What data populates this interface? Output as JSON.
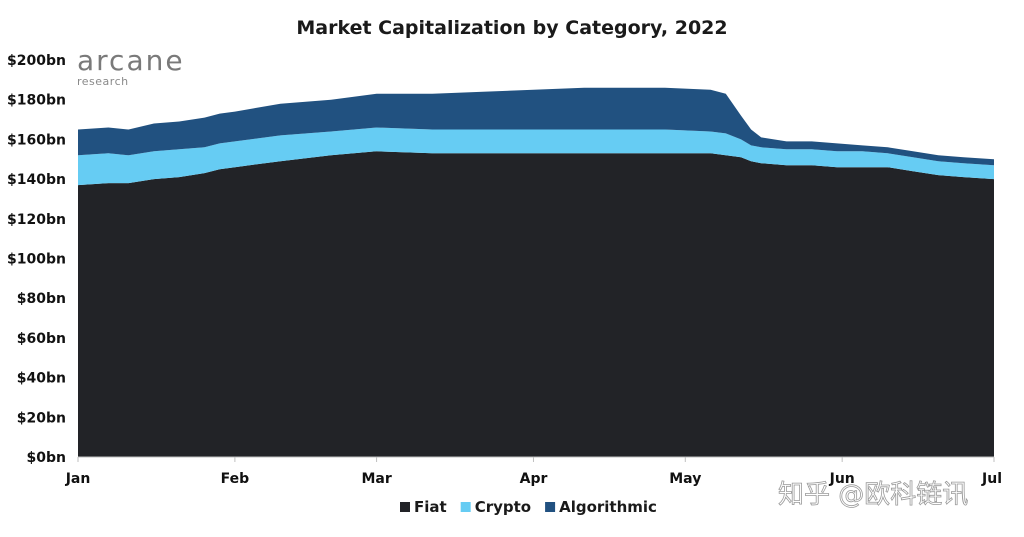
{
  "brand": {
    "name": "arcane",
    "sub": "research"
  },
  "watermark": "知乎 @欧科链讯",
  "colors": {
    "fiat": "#222327",
    "crypto": "#66ccf3",
    "algorithmic": "#215180",
    "axis": "#bfbfbf"
  },
  "chart_data": {
    "type": "area",
    "stacked": true,
    "title": "Market Capitalization  by Category, 2022",
    "ylim": [
      0,
      200
    ],
    "y_ticks": [
      0,
      20,
      40,
      60,
      80,
      100,
      120,
      140,
      160,
      180,
      200
    ],
    "y_tick_labels": [
      "$0bn",
      "$20bn",
      "$40bn",
      "$60bn",
      "$80bn",
      "$100bn",
      "$120bn",
      "$140bn",
      "$160bn",
      "$180bn",
      "$200bn"
    ],
    "x_tick_labels": [
      "Jan",
      "Feb",
      "Mar",
      "Apr",
      "May",
      "Jun",
      "Jul"
    ],
    "x_tick_days": [
      0,
      31,
      59,
      90,
      120,
      151,
      181
    ],
    "x_days": [
      0,
      6,
      10,
      15,
      20,
      25,
      28,
      31,
      40,
      50,
      59,
      70,
      80,
      90,
      100,
      110,
      116,
      125,
      128,
      131,
      133,
      135,
      140,
      145,
      150,
      155,
      160,
      165,
      170,
      175,
      181
    ],
    "legend_position": "bottom",
    "grid": false,
    "series": [
      {
        "name": "Fiat",
        "values": [
          137,
          138,
          138,
          140,
          141,
          143,
          145,
          146,
          149,
          152,
          154,
          153,
          153,
          153,
          153,
          153,
          153,
          153,
          152,
          151,
          149,
          148,
          147,
          147,
          146,
          146,
          146,
          144,
          142,
          141,
          140
        ]
      },
      {
        "name": "Crypto",
        "values": [
          15,
          15,
          14,
          14,
          14,
          13,
          13,
          13,
          13,
          12,
          12,
          12,
          12,
          12,
          12,
          12,
          12,
          11,
          11,
          9,
          8,
          8,
          8,
          8,
          8,
          8,
          7,
          7,
          7,
          7,
          7
        ]
      },
      {
        "name": "Algorithmic",
        "values": [
          13,
          13,
          13,
          14,
          14,
          15,
          15,
          15,
          16,
          16,
          17,
          18,
          19,
          20,
          21,
          21,
          21,
          21,
          20,
          12,
          8,
          5,
          4,
          4,
          4,
          3,
          3,
          3,
          3,
          3,
          3
        ]
      }
    ]
  }
}
